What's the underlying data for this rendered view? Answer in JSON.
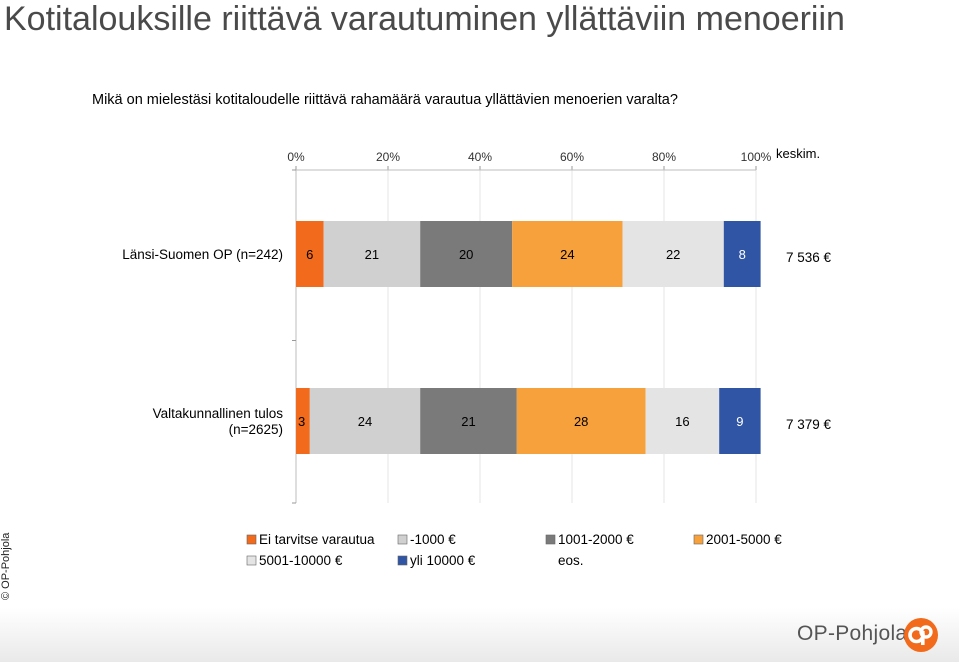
{
  "page": {
    "title": "Kotitalouksille riittävä varautuminen yllättäviin menoeriin",
    "question": "Mikä on mielestäsi kotitaloudelle riittävä rahamäärä varautua yllättävien menoerien varalta?",
    "copyright": "© OP-Pohjola",
    "brand": "OP-Pohjola"
  },
  "chart_data": {
    "type": "bar",
    "orientation": "horizontal",
    "stacked": true,
    "percent": true,
    "xlim": [
      0,
      100
    ],
    "x_ticks": [
      "0%",
      "20%",
      "40%",
      "60%",
      "80%",
      "100%"
    ],
    "grid": true,
    "legend_position": "bottom",
    "extra_column_header": "keskim.",
    "categories": [
      "Länsi-Suomen OP (n=242)",
      "Valtakunnallinen tulos (n=2625)"
    ],
    "averages": [
      "7 536 €",
      "7 379 €"
    ],
    "series": [
      {
        "name": "Ei tarvitse varautua",
        "color": "#f26a1b",
        "values": [
          6,
          3
        ]
      },
      {
        "name": "-1000 €",
        "color": "#d0d0d0",
        "values": [
          21,
          24
        ]
      },
      {
        "name": "1001-2000 €",
        "color": "#7a7a7a",
        "values": [
          20,
          21
        ]
      },
      {
        "name": "2001-5000 €",
        "color": "#f7a13d",
        "values": [
          24,
          28
        ]
      },
      {
        "name": "5001-10000 €",
        "color": "#e4e4e4",
        "values": [
          22,
          16
        ]
      },
      {
        "name": "yli 10000 €",
        "color": "#2f55a4",
        "values": [
          8,
          9
        ]
      },
      {
        "name": "eos.",
        "color": "#ffffff",
        "values": [
          0,
          0
        ]
      }
    ]
  }
}
